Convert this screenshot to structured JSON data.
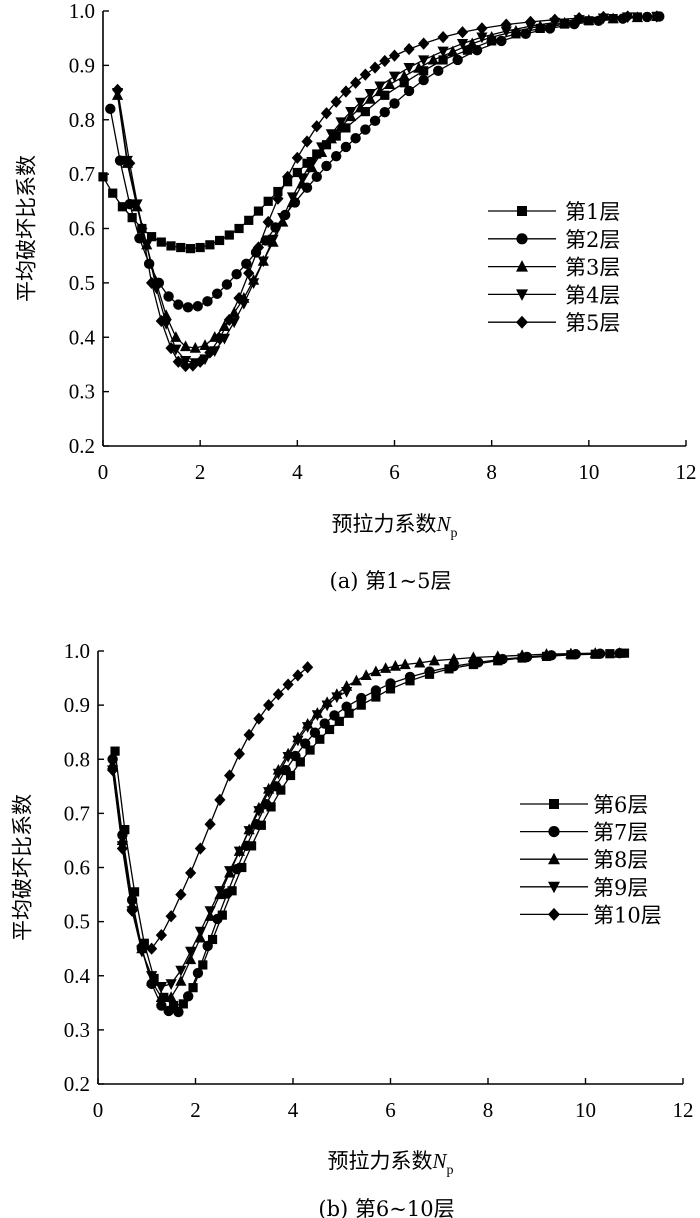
{
  "chart_data": [
    {
      "type": "line",
      "caption": "(a) 第1~5层",
      "xlabel_main": "预拉力系数",
      "xlabel_var": "N",
      "xlabel_sub": "p",
      "ylabel": "平均破坏比系数",
      "xlim": [
        0,
        12
      ],
      "ylim": [
        0.2,
        1.0
      ],
      "xticks": [
        "0",
        "2",
        "4",
        "6",
        "8",
        "10",
        "12"
      ],
      "yticks": [
        "0.2",
        "0.3",
        "0.4",
        "0.5",
        "0.6",
        "0.7",
        "0.8",
        "0.9",
        "1.0"
      ],
      "legend_position": "middle-right",
      "series": [
        {
          "name": "第1层",
          "marker": "square",
          "x": [
            0.0,
            0.2,
            0.4,
            0.6,
            0.8,
            1.0,
            1.2,
            1.4,
            1.6,
            1.8,
            2.0,
            2.2,
            2.4,
            2.6,
            2.8,
            3.0,
            3.2,
            3.4,
            3.6,
            3.8,
            4.0,
            4.2,
            4.4,
            4.6,
            4.8,
            5.0,
            5.4,
            5.8,
            6.2,
            6.6,
            7.0,
            7.5,
            8.0,
            8.5,
            9.0,
            9.5,
            10.0,
            10.5,
            11.0,
            11.4
          ],
          "y": [
            0.695,
            0.665,
            0.64,
            0.62,
            0.6,
            0.585,
            0.575,
            0.568,
            0.565,
            0.563,
            0.565,
            0.57,
            0.578,
            0.588,
            0.6,
            0.615,
            0.632,
            0.65,
            0.668,
            0.686,
            0.703,
            0.72,
            0.737,
            0.754,
            0.77,
            0.785,
            0.815,
            0.845,
            0.868,
            0.89,
            0.91,
            0.928,
            0.945,
            0.958,
            0.968,
            0.976,
            0.982,
            0.986,
            0.989,
            0.99
          ]
        },
        {
          "name": "第2层",
          "marker": "circle",
          "x": [
            0.15,
            0.35,
            0.55,
            0.75,
            0.95,
            1.15,
            1.35,
            1.55,
            1.75,
            1.95,
            2.15,
            2.35,
            2.55,
            2.75,
            2.95,
            3.15,
            3.35,
            3.55,
            3.75,
            3.95,
            4.2,
            4.4,
            4.6,
            4.8,
            5.0,
            5.2,
            5.4,
            5.6,
            5.8,
            6.0,
            6.3,
            6.6,
            6.9,
            7.3,
            7.7,
            8.2,
            8.7,
            9.2,
            9.7,
            10.2,
            10.7,
            11.2,
            11.45
          ],
          "y": [
            0.82,
            0.725,
            0.645,
            0.582,
            0.535,
            0.5,
            0.475,
            0.46,
            0.455,
            0.457,
            0.466,
            0.48,
            0.497,
            0.516,
            0.535,
            0.556,
            0.578,
            0.602,
            0.625,
            0.648,
            0.675,
            0.695,
            0.715,
            0.733,
            0.75,
            0.766,
            0.782,
            0.798,
            0.814,
            0.83,
            0.853,
            0.873,
            0.89,
            0.91,
            0.928,
            0.945,
            0.958,
            0.968,
            0.976,
            0.982,
            0.986,
            0.989,
            0.99
          ]
        },
        {
          "name": "第3层",
          "marker": "triangle-up",
          "x": [
            0.3,
            0.5,
            0.7,
            0.9,
            1.1,
            1.3,
            1.5,
            1.7,
            1.9,
            2.1,
            2.3,
            2.5,
            2.7,
            2.9,
            3.1,
            3.3,
            3.5,
            3.7,
            3.9,
            4.1,
            4.3,
            4.5,
            4.7,
            4.9,
            5.1,
            5.3,
            5.5,
            5.7,
            5.9,
            6.2,
            6.5,
            6.8,
            7.2,
            7.6,
            8.0,
            8.5,
            9.0,
            9.5,
            10.0,
            10.5,
            11.0,
            11.4
          ],
          "y": [
            0.845,
            0.72,
            0.64,
            0.57,
            0.5,
            0.44,
            0.4,
            0.383,
            0.38,
            0.385,
            0.4,
            0.42,
            0.445,
            0.472,
            0.505,
            0.54,
            0.575,
            0.612,
            0.648,
            0.682,
            0.712,
            0.74,
            0.765,
            0.787,
            0.806,
            0.822,
            0.838,
            0.852,
            0.865,
            0.88,
            0.895,
            0.91,
            0.925,
            0.94,
            0.952,
            0.963,
            0.972,
            0.978,
            0.983,
            0.986,
            0.988,
            0.99
          ]
        },
        {
          "name": "第4层",
          "marker": "triangle-down",
          "x": [
            0.3,
            0.5,
            0.7,
            0.9,
            1.1,
            1.3,
            1.5,
            1.7,
            1.9,
            2.1,
            2.3,
            2.5,
            2.7,
            2.9,
            3.1,
            3.3,
            3.5,
            3.7,
            3.9,
            4.1,
            4.3,
            4.5,
            4.7,
            4.9,
            5.1,
            5.3,
            5.5,
            5.7,
            6.0,
            6.3,
            6.6,
            7.0,
            7.4,
            7.8,
            8.3,
            8.8,
            9.3,
            9.8,
            10.3,
            10.8,
            11.4
          ],
          "y": [
            0.85,
            0.725,
            0.645,
            0.57,
            0.49,
            0.425,
            0.378,
            0.357,
            0.353,
            0.36,
            0.375,
            0.398,
            0.428,
            0.462,
            0.5,
            0.54,
            0.58,
            0.62,
            0.658,
            0.693,
            0.723,
            0.75,
            0.774,
            0.796,
            0.815,
            0.832,
            0.848,
            0.862,
            0.88,
            0.896,
            0.91,
            0.926,
            0.94,
            0.952,
            0.963,
            0.972,
            0.979,
            0.984,
            0.987,
            0.989,
            0.99
          ]
        },
        {
          "name": "第5层",
          "marker": "diamond",
          "x": [
            0.3,
            0.55,
            0.8,
            1.0,
            1.2,
            1.4,
            1.55,
            1.7,
            1.85,
            2.0,
            2.2,
            2.4,
            2.6,
            2.8,
            3.0,
            3.2,
            3.4,
            3.6,
            3.8,
            4.0,
            4.2,
            4.4,
            4.6,
            4.8,
            5.0,
            5.2,
            5.4,
            5.6,
            5.8,
            6.0,
            6.3,
            6.6,
            7.0,
            7.4,
            7.8,
            8.3,
            8.8,
            9.3,
            9.8,
            10.3,
            10.8,
            11.4
          ],
          "y": [
            0.855,
            0.72,
            0.6,
            0.5,
            0.43,
            0.38,
            0.355,
            0.347,
            0.348,
            0.355,
            0.372,
            0.398,
            0.432,
            0.472,
            0.518,
            0.565,
            0.612,
            0.655,
            0.695,
            0.73,
            0.76,
            0.788,
            0.812,
            0.833,
            0.852,
            0.868,
            0.883,
            0.896,
            0.908,
            0.918,
            0.93,
            0.94,
            0.952,
            0.961,
            0.968,
            0.975,
            0.98,
            0.984,
            0.987,
            0.989,
            0.99,
            0.99
          ]
        }
      ]
    },
    {
      "type": "line",
      "caption": "(b) 第6~10层",
      "xlabel_main": "预拉力系数",
      "xlabel_var": "N",
      "xlabel_sub": "p",
      "ylabel": "平均破坏比系数",
      "xlim": [
        0,
        12
      ],
      "ylim": [
        0.2,
        1.0
      ],
      "xticks": [
        "0",
        "2",
        "4",
        "6",
        "8",
        "10",
        "12"
      ],
      "yticks": [
        "0.2",
        "0.3",
        "0.4",
        "0.5",
        "0.6",
        "0.7",
        "0.8",
        "0.9",
        "1.0"
      ],
      "legend_position": "middle-right",
      "series": [
        {
          "name": "第6层",
          "marker": "square",
          "x": [
            0.35,
            0.55,
            0.75,
            0.95,
            1.15,
            1.35,
            1.55,
            1.75,
            1.95,
            2.15,
            2.35,
            2.55,
            2.75,
            2.95,
            3.15,
            3.35,
            3.55,
            3.75,
            3.95,
            4.15,
            4.35,
            4.55,
            4.75,
            4.95,
            5.15,
            5.4,
            5.7,
            6.0,
            6.4,
            6.8,
            7.2,
            7.7,
            8.2,
            8.7,
            9.2,
            9.7,
            10.2,
            10.5,
            10.8
          ],
          "y": [
            0.815,
            0.67,
            0.555,
            0.46,
            0.395,
            0.36,
            0.345,
            0.348,
            0.378,
            0.42,
            0.467,
            0.512,
            0.557,
            0.6,
            0.64,
            0.678,
            0.712,
            0.743,
            0.77,
            0.795,
            0.817,
            0.837,
            0.855,
            0.87,
            0.885,
            0.9,
            0.915,
            0.93,
            0.945,
            0.957,
            0.967,
            0.975,
            0.982,
            0.987,
            0.99,
            0.993,
            0.994,
            0.995,
            0.996
          ]
        },
        {
          "name": "第7层",
          "marker": "circle",
          "x": [
            0.3,
            0.5,
            0.7,
            0.9,
            1.1,
            1.3,
            1.45,
            1.65,
            1.85,
            2.05,
            2.25,
            2.45,
            2.65,
            2.85,
            3.05,
            3.25,
            3.45,
            3.65,
            3.85,
            4.05,
            4.25,
            4.45,
            4.65,
            4.85,
            5.1,
            5.4,
            5.7,
            6.0,
            6.4,
            6.8,
            7.3,
            7.8,
            8.3,
            8.8,
            9.3,
            9.8,
            10.3,
            10.7
          ],
          "y": [
            0.8,
            0.66,
            0.54,
            0.45,
            0.385,
            0.345,
            0.335,
            0.333,
            0.362,
            0.405,
            0.455,
            0.505,
            0.552,
            0.597,
            0.64,
            0.68,
            0.717,
            0.75,
            0.78,
            0.806,
            0.829,
            0.849,
            0.866,
            0.881,
            0.897,
            0.913,
            0.927,
            0.94,
            0.952,
            0.962,
            0.972,
            0.979,
            0.985,
            0.989,
            0.992,
            0.994,
            0.995,
            0.996
          ]
        },
        {
          "name": "第8层",
          "marker": "triangle-up",
          "x": [
            0.3,
            0.5,
            0.7,
            0.9,
            1.1,
            1.3,
            1.5,
            1.7,
            1.9,
            2.1,
            2.3,
            2.5,
            2.7,
            2.9,
            3.1,
            3.3,
            3.5,
            3.7,
            3.9,
            4.1,
            4.3,
            4.5,
            4.7,
            4.9,
            5.1,
            5.3,
            5.5,
            5.7,
            5.9,
            6.1,
            6.3,
            6.6,
            6.9,
            7.3,
            7.7,
            8.2,
            8.7,
            9.2,
            9.7,
            10.2,
            10.7
          ],
          "y": [
            0.79,
            0.65,
            0.53,
            0.45,
            0.39,
            0.36,
            0.36,
            0.39,
            0.43,
            0.47,
            0.51,
            0.55,
            0.59,
            0.63,
            0.67,
            0.71,
            0.745,
            0.78,
            0.81,
            0.84,
            0.865,
            0.885,
            0.905,
            0.92,
            0.935,
            0.945,
            0.955,
            0.962,
            0.968,
            0.972,
            0.975,
            0.978,
            0.982,
            0.985,
            0.988,
            0.99,
            0.992,
            0.994,
            0.995,
            0.996,
            0.996
          ]
        },
        {
          "name": "第9层",
          "marker": "triangle-down",
          "x": [
            0.3,
            0.5,
            0.7,
            0.9,
            1.1,
            1.3,
            1.5,
            1.7,
            1.9,
            2.1,
            2.3,
            2.5,
            2.7,
            2.9,
            3.1,
            3.3,
            3.5,
            3.7,
            3.9,
            4.1,
            4.3,
            4.5,
            4.7,
            4.9,
            5.1
          ],
          "y": [
            0.78,
            0.64,
            0.52,
            0.445,
            0.4,
            0.38,
            0.385,
            0.41,
            0.445,
            0.482,
            0.52,
            0.557,
            0.594,
            0.63,
            0.668,
            0.705,
            0.74,
            0.774,
            0.805,
            0.835,
            0.86,
            0.882,
            0.9,
            0.915,
            0.925
          ]
        },
        {
          "name": "第10层",
          "marker": "diamond",
          "x": [
            0.3,
            0.5,
            0.7,
            0.9,
            1.1,
            1.3,
            1.5,
            1.7,
            1.9,
            2.1,
            2.3,
            2.5,
            2.7,
            2.9,
            3.1,
            3.3,
            3.5,
            3.7,
            3.9,
            4.1,
            4.3
          ],
          "y": [
            0.78,
            0.635,
            0.52,
            0.455,
            0.45,
            0.475,
            0.51,
            0.55,
            0.59,
            0.635,
            0.68,
            0.725,
            0.77,
            0.81,
            0.845,
            0.875,
            0.9,
            0.92,
            0.938,
            0.955,
            0.97
          ]
        }
      ]
    }
  ]
}
